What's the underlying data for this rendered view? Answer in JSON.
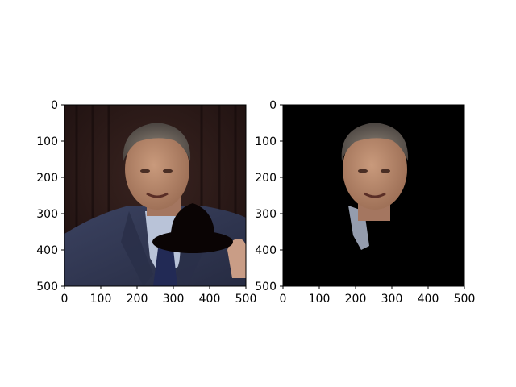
{
  "figure": {
    "background": "#ffffff"
  },
  "chart_data": [
    {
      "type": "image",
      "title": "",
      "xlabel": "",
      "ylabel": "",
      "xlim": [
        0,
        500
      ],
      "ylim": [
        500,
        0
      ],
      "xticks": [
        0,
        100,
        200,
        300,
        400,
        500
      ],
      "yticks": [
        0,
        100,
        200,
        300,
        400,
        500
      ],
      "content": "photo of a man in a dark suit with a black bowler hat shape overlaid",
      "colors": {
        "background": "#2a1818",
        "suit": "#2f3550",
        "shirt": "#b9c3d8",
        "tie": "#222a55",
        "skin": "#b98a6e",
        "hair": "#6b6359",
        "hat": "#0a0404"
      }
    },
    {
      "type": "image",
      "title": "",
      "xlabel": "",
      "ylabel": "",
      "xlim": [
        0,
        500
      ],
      "ylim": [
        500,
        0
      ],
      "xticks": [
        0,
        100,
        200,
        300,
        400,
        500
      ],
      "yticks": [
        0,
        100,
        200,
        300,
        400,
        500
      ],
      "content": "masked image showing only the face region on a black background",
      "colors": {
        "background": "#000000",
        "skin": "#b98a6e",
        "hair": "#6b6359",
        "shirt": "#b9c3d8"
      }
    }
  ]
}
